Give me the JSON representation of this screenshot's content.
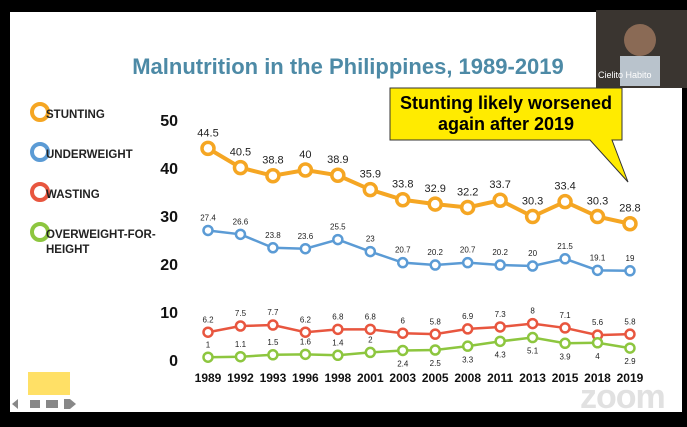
{
  "chart_data": {
    "type": "line",
    "title": "Malnutrition in the Philippines, 1989-2019",
    "annotation": "Stunting likely worsened again after 2019",
    "categories": [
      "1989",
      "1992",
      "1993",
      "1996",
      "1998",
      "2001",
      "2003",
      "2005",
      "2008",
      "2011",
      "2013",
      "2015",
      "2018",
      "2019"
    ],
    "series": [
      {
        "name": "STUNTING",
        "color": "#f5a623",
        "values": [
          44.5,
          40.5,
          38.8,
          40,
          38.9,
          35.9,
          33.8,
          32.9,
          32.2,
          33.7,
          30.3,
          33.4,
          30.3,
          28.8
        ]
      },
      {
        "name": "UNDERWEIGHT",
        "color": "#5b9bd5",
        "values": [
          27.4,
          26.6,
          23.8,
          23.6,
          25.5,
          23,
          20.7,
          20.2,
          20.7,
          20.2,
          20,
          21.5,
          19.1,
          19
        ]
      },
      {
        "name": "WASTING",
        "color": "#e8563f",
        "values": [
          6.2,
          7.5,
          7.7,
          6.2,
          6.8,
          6.8,
          6,
          5.8,
          6.9,
          7.3,
          8,
          7.1,
          5.6,
          5.8
        ]
      },
      {
        "name": "OVERWEIGHT-FOR-HEIGHT",
        "color": "#8dc63f",
        "values": [
          1,
          1.1,
          1.5,
          1.6,
          1.4,
          2,
          2.4,
          2.5,
          3.3,
          4.3,
          5.1,
          3.9,
          4,
          2.9
        ]
      }
    ],
    "ylim": [
      0,
      50
    ],
    "yticks": [
      0,
      10,
      20,
      30,
      40,
      50
    ],
    "grid": false
  },
  "presenter": {
    "name": "Cielito Habito"
  },
  "watermark": "zoom"
}
